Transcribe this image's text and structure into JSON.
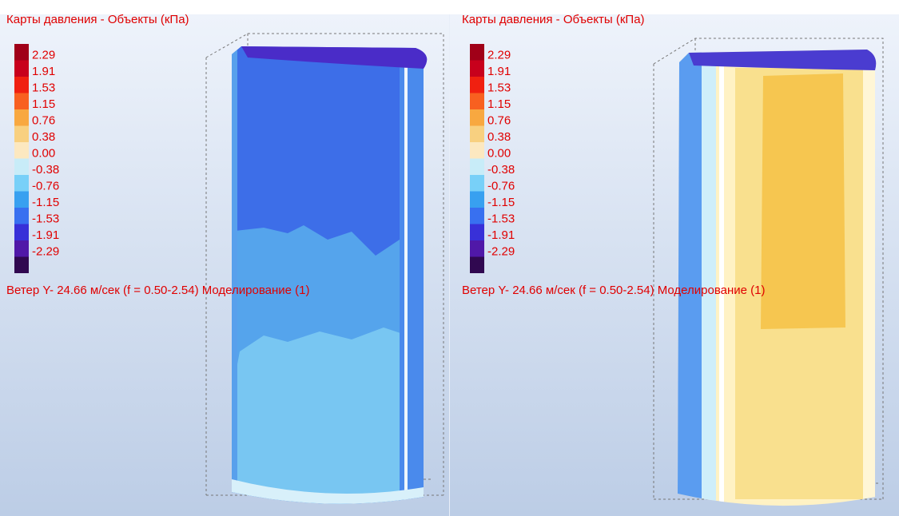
{
  "panels": [
    {
      "title": "Карты давления - Объекты (кПа)",
      "legend": [
        "2.29",
        "1.91",
        "1.53",
        "1.15",
        "0.76",
        "0.38",
        "0.00",
        "-0.38",
        "-0.76",
        "-1.15",
        "-1.53",
        "-1.91",
        "-2.29"
      ],
      "caption": "Ветер Y- 24.66 м/сек (f = 0.50-2.54) Моделирование (1)"
    },
    {
      "title": "Карты давления - Объекты (кПа)",
      "legend": [
        "2.29",
        "1.91",
        "1.53",
        "1.15",
        "0.76",
        "0.38",
        "0.00",
        "-0.38",
        "-0.76",
        "-1.15",
        "-1.53",
        "-1.91",
        "-2.29"
      ],
      "caption": "Ветер Y- 24.66 м/сек (f = 0.50-2.54) Моделирование (1)"
    }
  ]
}
